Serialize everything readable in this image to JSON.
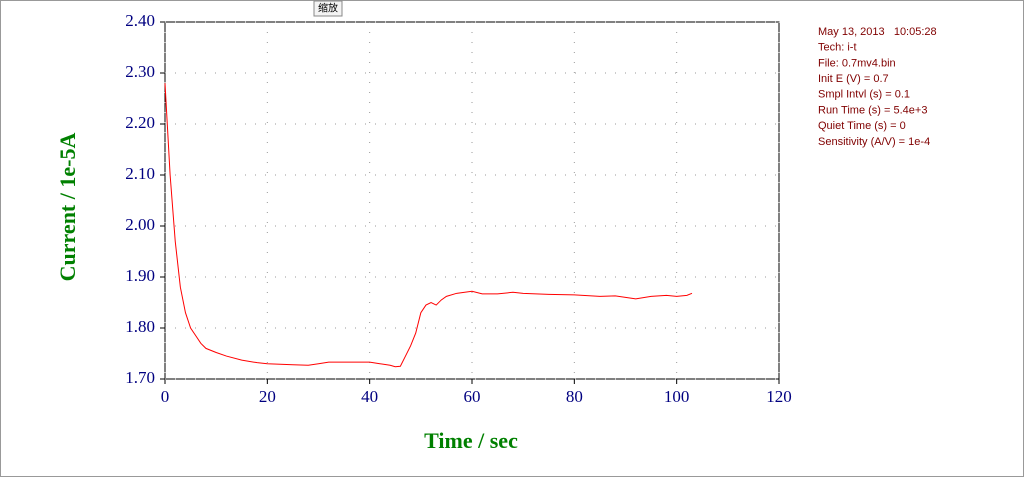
{
  "chart_data": {
    "type": "line",
    "button_label": "缩放",
    "xlabel": "Time / sec",
    "ylabel": "Current / 1e-5A",
    "xlim": [
      0,
      120
    ],
    "ylim": [
      1.7,
      2.4
    ],
    "xticks": [
      0,
      20,
      40,
      60,
      80,
      100,
      120
    ],
    "yticks": [
      {
        "value": 1.7,
        "label": "1.70"
      },
      {
        "value": 1.8,
        "label": "1.80"
      },
      {
        "value": 1.9,
        "label": "1.90"
      },
      {
        "value": 2.0,
        "label": "2.00"
      },
      {
        "value": 2.1,
        "label": "2.10"
      },
      {
        "value": 2.2,
        "label": "2.20"
      },
      {
        "value": 2.3,
        "label": "2.30"
      },
      {
        "value": 2.4,
        "label": "2.40"
      }
    ],
    "grid": true,
    "annotations": [
      "May 13, 2013   10:05:28",
      "Tech: i-t",
      "File: 0.7mv4.bin",
      "Init E (V) = 0.7",
      "Smpl Intvl (s) = 0.1",
      "Run Time (s) = 5.4e+3",
      "Quiet Time (s) = 0",
      "Sensitivity (A/V) = 1e-4"
    ],
    "series": [
      {
        "color": "#ff0000",
        "x": [
          0,
          1,
          2,
          3,
          4,
          5,
          6,
          7,
          8,
          10,
          12,
          15,
          18,
          20,
          25,
          28,
          30,
          32,
          35,
          38,
          40,
          42,
          44,
          45,
          46,
          47,
          48,
          49,
          50,
          51,
          52,
          53,
          54,
          55,
          57,
          60,
          62,
          65,
          68,
          70,
          75,
          80,
          85,
          88,
          90,
          92,
          95,
          98,
          100,
          102,
          103
        ],
        "values": [
          2.28,
          2.1,
          1.97,
          1.88,
          1.83,
          1.8,
          1.785,
          1.77,
          1.76,
          1.752,
          1.745,
          1.737,
          1.732,
          1.73,
          1.728,
          1.727,
          1.73,
          1.733,
          1.733,
          1.733,
          1.733,
          1.73,
          1.727,
          1.724,
          1.725,
          1.745,
          1.765,
          1.79,
          1.83,
          1.845,
          1.85,
          1.845,
          1.855,
          1.862,
          1.868,
          1.872,
          1.867,
          1.867,
          1.87,
          1.868,
          1.866,
          1.865,
          1.862,
          1.863,
          1.86,
          1.857,
          1.862,
          1.864,
          1.862,
          1.864,
          1.868
        ]
      }
    ]
  }
}
